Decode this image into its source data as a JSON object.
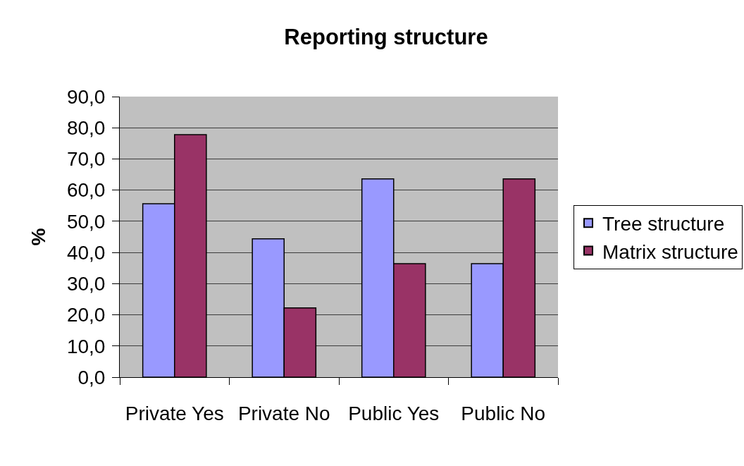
{
  "chart_data": {
    "type": "bar",
    "title": "Reporting structure",
    "ylabel": "%",
    "categories": [
      "Private Yes",
      "Private No",
      "Public Yes",
      "Public No"
    ],
    "series": [
      {
        "name": "Tree structure",
        "color": "#9999ff",
        "values": [
          55.6,
          44.4,
          63.6,
          36.4
        ]
      },
      {
        "name": "Matrix structure",
        "color": "#993366",
        "values": [
          77.8,
          22.2,
          36.4,
          63.6
        ]
      }
    ],
    "ylim": [
      0,
      90
    ],
    "yticks": [
      {
        "value": 0,
        "label": "0,0"
      },
      {
        "value": 10,
        "label": "10,0"
      },
      {
        "value": 20,
        "label": "20,0"
      },
      {
        "value": 30,
        "label": "30,0"
      },
      {
        "value": 40,
        "label": "40,0"
      },
      {
        "value": 50,
        "label": "50,0"
      },
      {
        "value": 60,
        "label": "60,0"
      },
      {
        "value": 70,
        "label": "70,0"
      },
      {
        "value": 80,
        "label": "80,0"
      },
      {
        "value": 90,
        "label": "90,0"
      }
    ],
    "grid": "y",
    "legend": "right"
  }
}
